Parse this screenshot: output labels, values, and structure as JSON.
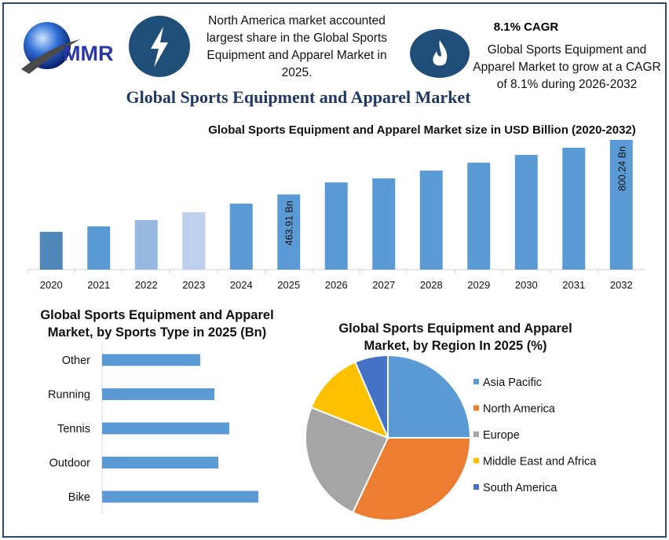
{
  "header": {
    "logo_text": "MMR",
    "note_left": "North America market accounted largest share in the Global Sports Equipment and Apparel Market in 2025.",
    "cagr_heading": "8.1% CAGR",
    "note_right": "Global Sports Equipment and Apparel Market to grow at a CAGR of 8.1% during 2026-2032",
    "icons": [
      "lightning-icon",
      "flame-icon"
    ],
    "main_title": "Global Sports Equipment and Apparel Market"
  },
  "chart_data": [
    {
      "type": "bar",
      "title": "Global Sports Equipment and Apparel Market size in USD Billion (2020-2032)",
      "categories": [
        "2020",
        "2021",
        "2022",
        "2023",
        "2024",
        "2025",
        "2026",
        "2027",
        "2028",
        "2029",
        "2030",
        "2031",
        "2032"
      ],
      "values": [
        233,
        267,
        306,
        354,
        407,
        463.91,
        538,
        563,
        611,
        660,
        708,
        752,
        800.24
      ],
      "data_labels": {
        "2025": "463.91 Bn",
        "2032": "800.24 Bn"
      },
      "colors": [
        "#4f87ba",
        "#5b9bd5",
        "#97b9e0",
        "#bdd1ec",
        "#5b9bd5",
        "#5b9bd5",
        "#5b9bd5",
        "#5b9bd5",
        "#5b9bd5",
        "#5b9bd5",
        "#5b9bd5",
        "#5b9bd5",
        "#5b9bd5"
      ],
      "grid": false
    },
    {
      "type": "bar",
      "orientation": "horizontal",
      "title": "Global Sports Equipment and Apparel Market, by Sports Type in 2025 (Bn)",
      "categories": [
        "Other",
        "Running",
        "Tennis",
        "Outdoor",
        "Bike"
      ],
      "values": [
        125,
        143,
        162,
        148,
        199
      ],
      "color": "#5b9bd5",
      "grid": false
    },
    {
      "type": "pie",
      "title": "Global Sports Equipment and Apparel Market, by Region In 2025 (%)",
      "categories": [
        "Asia Pacific",
        "North America",
        "Europe",
        "Middle East and Africa",
        "South America"
      ],
      "values": [
        25,
        32,
        24,
        12.5,
        6.5
      ],
      "colors": [
        "#5b9bd5",
        "#ed7d31",
        "#a5a5a5",
        "#ffc000",
        "#4472c4"
      ],
      "legend_placement": "right"
    }
  ]
}
